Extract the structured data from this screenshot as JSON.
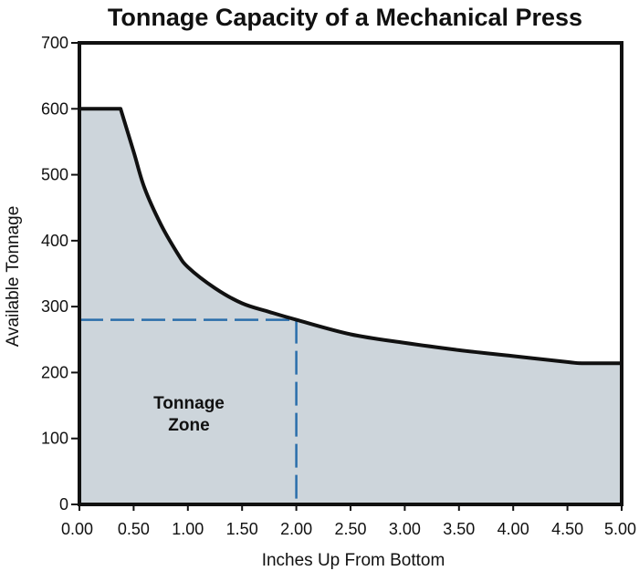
{
  "chart_data": {
    "type": "area",
    "title": "Tonnage Capacity of a Mechanical Press",
    "xlabel": "Inches Up From Bottom",
    "ylabel": "Available Tonnage",
    "xlim": [
      0,
      5
    ],
    "ylim": [
      0,
      700
    ],
    "x_ticks": [
      "0.00",
      "0.50",
      "1.00",
      "1.50",
      "2.00",
      "2.50",
      "3.00",
      "3.50",
      "4.00",
      "4.50",
      "5.00"
    ],
    "y_ticks": [
      "0",
      "100",
      "200",
      "300",
      "400",
      "500",
      "600",
      "700"
    ],
    "grid": false,
    "series": [
      {
        "x": [
          0,
          0.38,
          0.5,
          0.6,
          0.75,
          0.9,
          1.0,
          1.25,
          1.5,
          1.75,
          2.0,
          2.5,
          3.0,
          3.5,
          4.0,
          4.5,
          4.65,
          5.0
        ],
        "values": [
          600,
          600,
          535,
          480,
          425,
          382,
          360,
          328,
          305,
          292,
          280,
          258,
          245,
          234,
          225,
          216,
          214,
          214
        ]
      }
    ],
    "annotations": {
      "zone_label_line1": "Tonnage",
      "zone_label_line2": "Zone",
      "reference_point": {
        "x": 2.0,
        "y": 280
      }
    },
    "colors": {
      "fill": "#cdd5db",
      "curve": "#111111",
      "reference_line": "#2a6eab",
      "axis": "#111111"
    }
  }
}
